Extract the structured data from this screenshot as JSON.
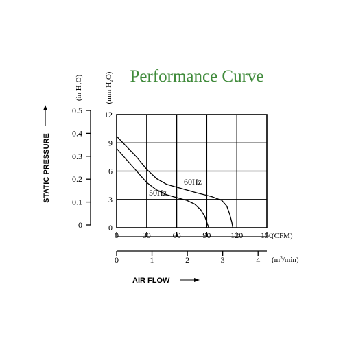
{
  "chart_data": {
    "type": "line",
    "title": "Performance Curve",
    "ylabel": "STATIC  PRESSURE",
    "xlabel": "AIR FLOW",
    "y_primary": {
      "unit": "(mm H₂O)",
      "range": [
        0,
        12
      ],
      "ticks": [
        "0",
        "3",
        "6",
        "9",
        "12"
      ]
    },
    "y_secondary": {
      "unit": "(in H₂O)",
      "range": [
        0,
        0.5
      ],
      "ticks": [
        "0",
        "0.1",
        "0.2",
        "0.3",
        "0.4",
        "0.5"
      ]
    },
    "x_primary": {
      "unit": "(CFM)",
      "range": [
        0,
        150
      ],
      "ticks": [
        "0",
        "30",
        "60",
        "90",
        "120",
        "150"
      ]
    },
    "x_secondary": {
      "unit_base": "(m",
      "unit_exp": "3",
      "unit_tail": "/min)",
      "range": [
        0,
        4.248
      ],
      "ticks": [
        "0",
        "1",
        "2",
        "3",
        "4"
      ]
    },
    "grid": true,
    "series": [
      {
        "name": "50Hz",
        "points": [
          [
            0,
            8.4
          ],
          [
            10,
            7.2
          ],
          [
            20,
            6.0
          ],
          [
            30,
            4.8
          ],
          [
            40,
            4.0
          ],
          [
            50,
            3.5
          ],
          [
            60,
            3.2
          ],
          [
            70,
            2.9
          ],
          [
            78,
            2.5
          ],
          [
            84,
            1.9
          ],
          [
            88,
            1.2
          ],
          [
            90,
            0.6
          ],
          [
            92,
            0
          ]
        ]
      },
      {
        "name": "60Hz",
        "points": [
          [
            0,
            9.7
          ],
          [
            10,
            8.6
          ],
          [
            20,
            7.5
          ],
          [
            30,
            6.2
          ],
          [
            40,
            5.2
          ],
          [
            50,
            4.6
          ],
          [
            60,
            4.3
          ],
          [
            70,
            4.0
          ],
          [
            80,
            3.7
          ],
          [
            95,
            3.3
          ],
          [
            105,
            2.9
          ],
          [
            110,
            2.3
          ],
          [
            113,
            1.4
          ],
          [
            115,
            0.6
          ],
          [
            116,
            0
          ]
        ]
      }
    ]
  }
}
